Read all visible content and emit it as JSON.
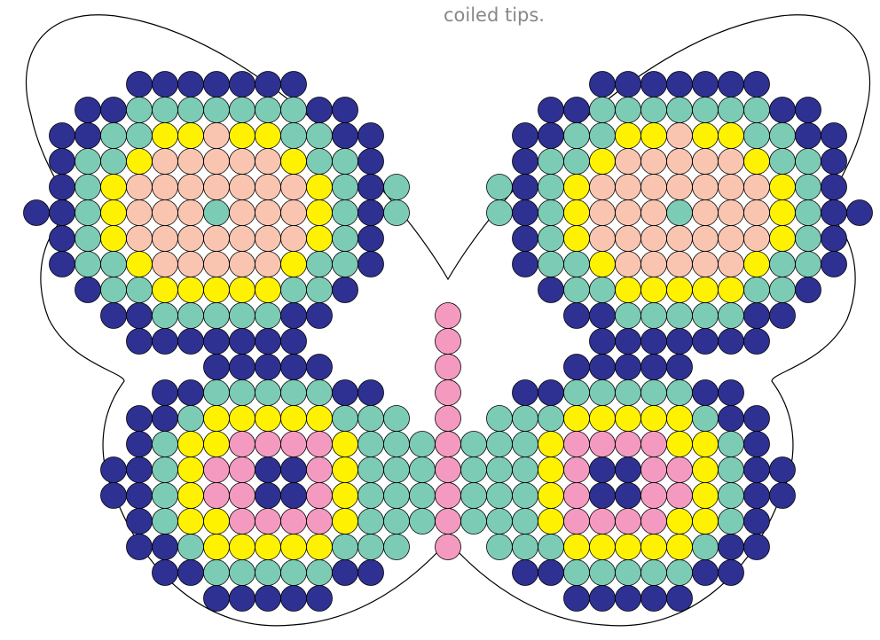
{
  "caption": "coiled tips."
}
